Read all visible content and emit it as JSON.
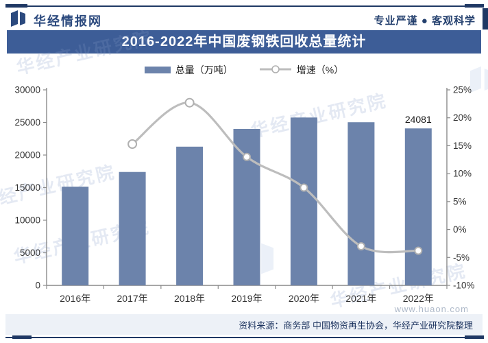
{
  "header": {
    "brand": "华经情报网",
    "slogan": "专业严谨 ● 客观科学"
  },
  "title": "2016-2022年中国废钢铁回收总量统计",
  "legend": [
    {
      "label": "总量（万吨）"
    },
    {
      "label": "增速（%）"
    }
  ],
  "source": "资料来源：商务部 中国物资再生协会，华经产业研究院整理",
  "watermark": {
    "text": "华经产业研究院",
    "url": "www.huaon.com"
  },
  "colors": {
    "bar": "#6c83ab",
    "line": "#bdbdbd",
    "marker_fill": "#ffffff",
    "marker_stroke": "#b0b0b0",
    "axis": "#8a8a8a",
    "navy": "#1f3864",
    "title_bg": "#3d5d97",
    "band_bg": "#edf1f7",
    "tick_text": "#333333"
  },
  "chart_data": {
    "type": "bar+line",
    "title": "2016-2022年中国废钢铁回收总量统计",
    "categories": [
      "2016年",
      "2017年",
      "2018年",
      "2019年",
      "2020年",
      "2021年",
      "2022年"
    ],
    "series": [
      {
        "name": "总量（万吨）",
        "type": "bar",
        "axis": "left",
        "values": [
          15150,
          17400,
          21280,
          24000,
          25760,
          25030,
          24081
        ]
      },
      {
        "name": "增速（%）",
        "type": "line",
        "axis": "right",
        "values": [
          null,
          15.3,
          22.7,
          13.0,
          7.5,
          -3.0,
          -3.8
        ]
      }
    ],
    "left_axis": {
      "min": 0,
      "max": 30000,
      "step": 5000,
      "ticks": [
        "0",
        "5000",
        "10000",
        "15000",
        "20000",
        "25000",
        "30000"
      ]
    },
    "right_axis": {
      "min": -10,
      "max": 25,
      "step": 5,
      "ticks": [
        "-10%",
        "-5%",
        "0%",
        "5%",
        "10%",
        "15%",
        "20%",
        "25%"
      ]
    },
    "data_labels": [
      {
        "category": "2022年",
        "text": "24081"
      }
    ],
    "legend_position": "top",
    "grid": false
  }
}
